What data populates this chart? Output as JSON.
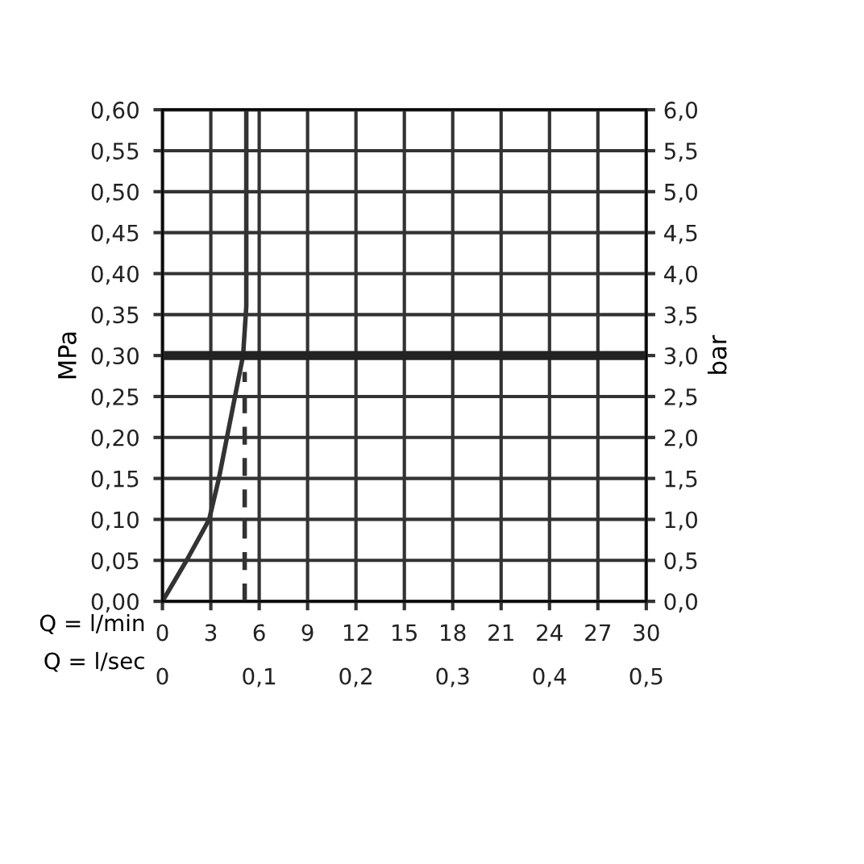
{
  "chart_data": {
    "type": "line",
    "xlabel": "Q = l/min",
    "x2label": "Q = l/sec",
    "ylabel": "MPa",
    "y2label": "bar",
    "xlim": [
      0,
      30
    ],
    "xticks": [
      0,
      3,
      6,
      9,
      12,
      15,
      18,
      21,
      24,
      27,
      30
    ],
    "x2lim": [
      0,
      0.5
    ],
    "x2ticks": [
      0,
      {
        "value": 0.1,
        "label": "0,1"
      },
      {
        "value": 0.2,
        "label": "0,2"
      },
      {
        "value": 0.3,
        "label": "0,3"
      },
      {
        "value": 0.4,
        "label": "0,4"
      },
      {
        "value": 0.5,
        "label": "0,5"
      }
    ],
    "ylim": [
      0,
      0.6
    ],
    "yticks": [
      {
        "value": 0,
        "label": "0,00"
      },
      {
        "value": 0.05,
        "label": "0,05"
      },
      {
        "value": 0.1,
        "label": "0,10"
      },
      {
        "value": 0.15,
        "label": "0,15"
      },
      {
        "value": 0.2,
        "label": "0,20"
      },
      {
        "value": 0.25,
        "label": "0,25"
      },
      {
        "value": 0.3,
        "label": "0,30"
      },
      {
        "value": 0.35,
        "label": "0,35"
      },
      {
        "value": 0.4,
        "label": "0,40"
      },
      {
        "value": 0.45,
        "label": "0,45"
      },
      {
        "value": 0.5,
        "label": "0,50"
      },
      {
        "value": 0.55,
        "label": "0,55"
      },
      {
        "value": 0.6,
        "label": "0,60"
      }
    ],
    "y2lim": [
      0,
      6
    ],
    "y2ticks": [
      {
        "value": 0,
        "label": "0,0"
      },
      {
        "value": 0.5,
        "label": "0,5"
      },
      {
        "value": 1,
        "label": "1,0"
      },
      {
        "value": 1.5,
        "label": "1,5"
      },
      {
        "value": 2,
        "label": "2,0"
      },
      {
        "value": 2.5,
        "label": "2,5"
      },
      {
        "value": 3,
        "label": "3,0"
      },
      {
        "value": 3.5,
        "label": "3,5"
      },
      {
        "value": 4,
        "label": "4,0"
      },
      {
        "value": 4.5,
        "label": "4,5"
      },
      {
        "value": 5,
        "label": "5,0"
      },
      {
        "value": 5.5,
        "label": "5,5"
      },
      {
        "value": 6,
        "label": "6,0"
      }
    ],
    "grid": true,
    "ref_lines": [
      {
        "axis": "y",
        "value": 0.3,
        "color": "#222222"
      }
    ],
    "series": [
      {
        "color": "#333333",
        "line_style": "solid",
        "x": [
          0,
          1.5,
          2.9,
          3.5,
          4.0,
          4.5,
          5.0,
          5.2,
          5.2
        ],
        "values": [
          0,
          0.05,
          0.1,
          0.15,
          0.2,
          0.25,
          0.3,
          0.36,
          0.6
        ]
      },
      {
        "color": "#333333",
        "line_style": "dashed",
        "x": [
          5.1,
          5.1
        ],
        "values": [
          0,
          0.28
        ]
      }
    ]
  }
}
